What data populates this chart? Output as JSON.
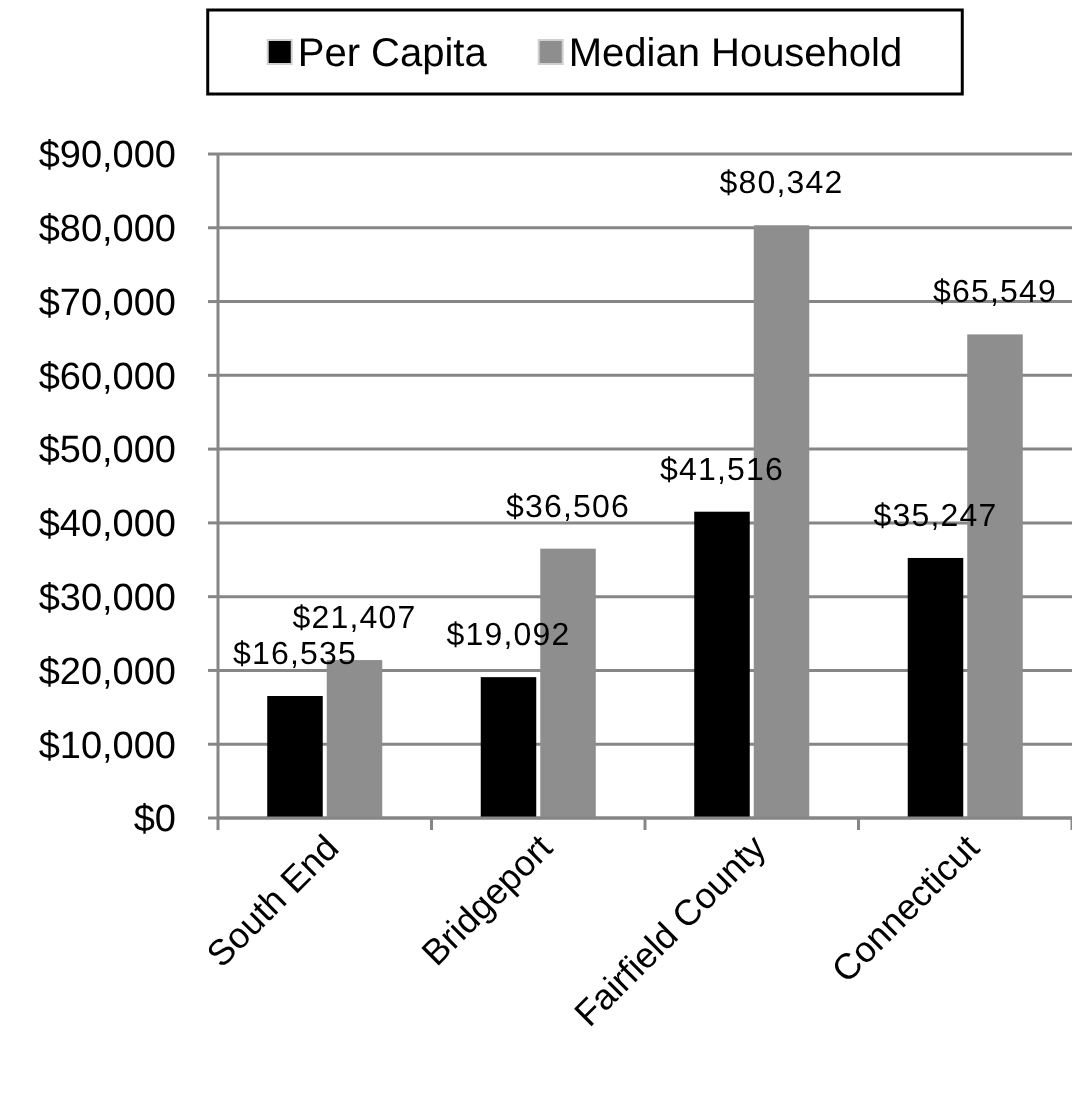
{
  "chart_data": {
    "type": "bar",
    "categories": [
      "South End",
      "Bridgeport",
      "Fairfield County",
      "Connecticut"
    ],
    "series": [
      {
        "name": "Per Capita",
        "color": "#000000",
        "values": [
          16535,
          19092,
          41516,
          35247
        ],
        "value_labels": [
          "$16,535",
          "$19,092",
          "$41,516",
          "$35,247"
        ]
      },
      {
        "name": "Median Household",
        "color": "#8e8e8e",
        "values": [
          21407,
          36506,
          80342,
          65549
        ],
        "value_labels": [
          "$21,407",
          "$36,506",
          "$80,342",
          "$65,549"
        ]
      }
    ],
    "ylim": [
      0,
      90000
    ],
    "yticks": [
      {
        "value": 0,
        "label": "$0"
      },
      {
        "value": 10000,
        "label": "$10,000"
      },
      {
        "value": 20000,
        "label": "$20,000"
      },
      {
        "value": 30000,
        "label": "$30,000"
      },
      {
        "value": 40000,
        "label": "$40,000"
      },
      {
        "value": 50000,
        "label": "$50,000"
      },
      {
        "value": 60000,
        "label": "$60,000"
      },
      {
        "value": 70000,
        "label": "$70,000"
      },
      {
        "value": 80000,
        "label": "$80,000"
      },
      {
        "value": 90000,
        "label": "$90,000"
      }
    ],
    "grid": "y",
    "legend": "top"
  }
}
